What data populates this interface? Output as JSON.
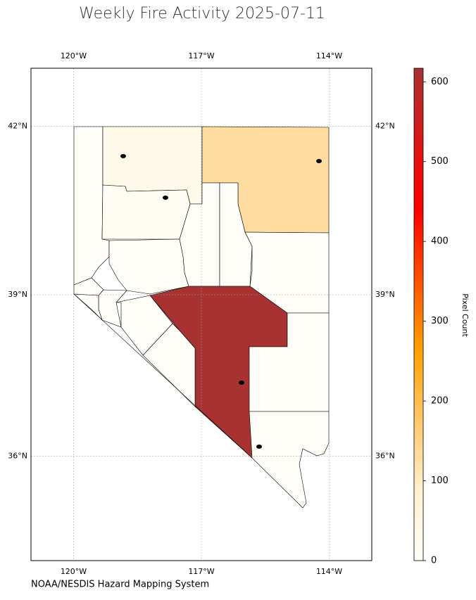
{
  "chart_data": {
    "type": "choropleth",
    "title": "Weekly Fire Activity 2025-07-11",
    "source": "NOAA/NESDIS Hazard Mapping System",
    "colorbar_label": "Pixel Count",
    "values": [
      0,
      30,
      130,
      10,
      0,
      0,
      0,
      0,
      617,
      0,
      3,
      0,
      0,
      0,
      0,
      0
    ],
    "colormap": [
      "#fffdf8",
      "#fff0d0",
      "#ffc76a",
      "#ffa000",
      "#ff5000",
      "#ff0000",
      "#d81818",
      "#a83232"
    ],
    "clim": [
      0,
      617
    ],
    "cticks": [
      0,
      100,
      200,
      300,
      400,
      500,
      600
    ],
    "xlim": [
      -121,
      -113
    ],
    "ylim": [
      34,
      43
    ],
    "xticks": [
      {
        "value": -120,
        "label": "120°W"
      },
      {
        "value": -117,
        "label": "117°W"
      },
      {
        "value": -114,
        "label": "114°W"
      }
    ],
    "yticks": [
      {
        "value": 42,
        "label": "42°N"
      },
      {
        "value": 39,
        "label": "39°N"
      },
      {
        "value": 36,
        "label": "36°N"
      }
    ],
    "grid": true
  }
}
